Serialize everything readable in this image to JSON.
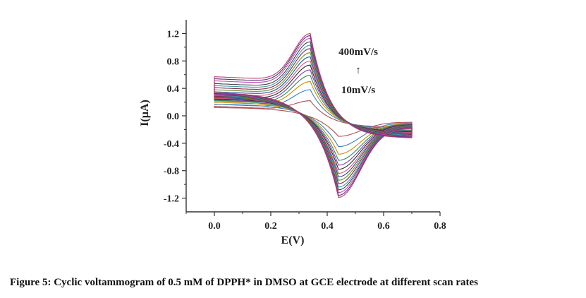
{
  "figure": {
    "caption": "Figure 5: Cyclic voltammogram of 0.5 mM of DPPH* in DMSO at GCE electrode at different scan rates"
  },
  "chart_data": {
    "type": "line",
    "title": "",
    "xlabel": "E(V)",
    "ylabel": "I(µA)",
    "xlim": [
      -0.1,
      0.8
    ],
    "ylim": [
      -1.4,
      1.4
    ],
    "x_ticks": [
      "0.0",
      "0.2",
      "0.4",
      "0.6",
      "0.8"
    ],
    "y_ticks": [
      "1.2",
      "0.8",
      "0.4",
      "0.0",
      "-0.4",
      "-0.8",
      "-1.2"
    ],
    "x_tick_values": [
      0.0,
      0.2,
      0.4,
      0.6,
      0.8
    ],
    "y_tick_values": [
      1.2,
      0.8,
      0.4,
      0.0,
      -0.4,
      -0.8,
      -1.2
    ],
    "grid": false,
    "annotations": {
      "top_label": "400mV/s",
      "arrow": "↑",
      "bottom_label": "10mV/s"
    },
    "potential_window": [
      0.0,
      0.7
    ],
    "anodic_peak_potential": 0.34,
    "cathodic_peak_potential": 0.44,
    "series": [
      {
        "color": "#b05050",
        "anodic_peak": 0.22,
        "cathodic_peak": -0.3,
        "start_current": 0.14,
        "switch_current": -0.17,
        "end_baseline": 0.12
      },
      {
        "color": "#3a7fc0",
        "anodic_peak": 0.38,
        "cathodic_peak": -0.45,
        "start_current": 0.17,
        "switch_current": -0.19,
        "end_baseline": 0.17
      },
      {
        "color": "#cc8a00",
        "anodic_peak": 0.5,
        "cathodic_peak": -0.56,
        "start_current": 0.2,
        "switch_current": -0.21,
        "end_baseline": 0.2
      },
      {
        "color": "#2e8b57",
        "anodic_peak": 0.59,
        "cathodic_peak": -0.65,
        "start_current": 0.23,
        "switch_current": -0.22,
        "end_baseline": 0.22
      },
      {
        "color": "#7a3fa6",
        "anodic_peak": 0.67,
        "cathodic_peak": -0.72,
        "start_current": 0.26,
        "switch_current": -0.23,
        "end_baseline": 0.24
      },
      {
        "color": "#2b2b2b",
        "anodic_peak": 0.74,
        "cathodic_peak": -0.78,
        "start_current": 0.29,
        "switch_current": -0.24,
        "end_baseline": 0.25
      },
      {
        "color": "#d4557a",
        "anodic_peak": 0.8,
        "cathodic_peak": -0.84,
        "start_current": 0.32,
        "switch_current": -0.25,
        "end_baseline": 0.26
      },
      {
        "color": "#1f4e9c",
        "anodic_peak": 0.86,
        "cathodic_peak": -0.89,
        "start_current": 0.35,
        "switch_current": -0.26,
        "end_baseline": 0.27
      },
      {
        "color": "#6b8e23",
        "anodic_peak": 0.92,
        "cathodic_peak": -0.94,
        "start_current": 0.38,
        "switch_current": -0.27,
        "end_baseline": 0.28
      },
      {
        "color": "#8b2252",
        "anodic_peak": 0.98,
        "cathodic_peak": -0.99,
        "start_current": 0.41,
        "switch_current": -0.28,
        "end_baseline": 0.29
      },
      {
        "color": "#3c9aa8",
        "anodic_peak": 1.03,
        "cathodic_peak": -1.04,
        "start_current": 0.44,
        "switch_current": -0.29,
        "end_baseline": 0.3
      },
      {
        "color": "#444444",
        "anodic_peak": 1.08,
        "cathodic_peak": -1.08,
        "start_current": 0.47,
        "switch_current": -0.3,
        "end_baseline": 0.31
      },
      {
        "color": "#c04ab0",
        "anodic_peak": 1.13,
        "cathodic_peak": -1.12,
        "start_current": 0.51,
        "switch_current": -0.31,
        "end_baseline": 0.32
      },
      {
        "color": "#5a2d82",
        "anodic_peak": 1.17,
        "cathodic_peak": -1.16,
        "start_current": 0.54,
        "switch_current": -0.32,
        "end_baseline": 0.33
      },
      {
        "color": "#b8406a",
        "anodic_peak": 1.2,
        "cathodic_peak": -1.19,
        "start_current": 0.57,
        "switch_current": -0.33,
        "end_baseline": 0.34
      }
    ]
  }
}
